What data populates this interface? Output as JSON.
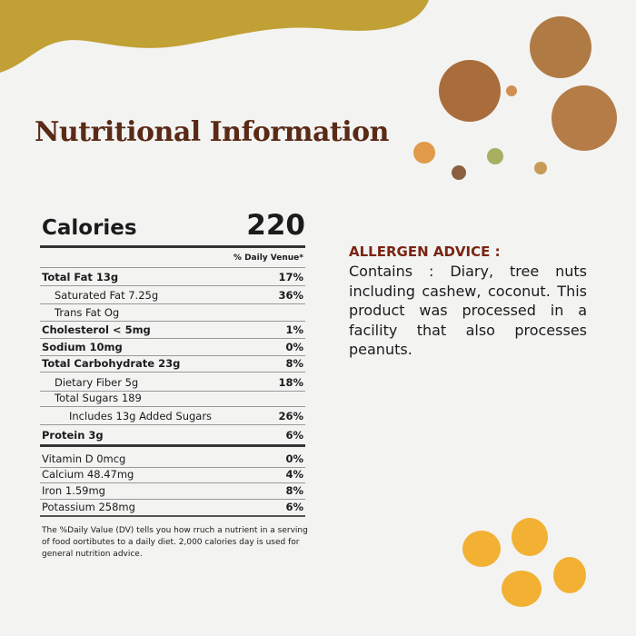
{
  "title": "Nutritional Information",
  "calories": {
    "label": "Calories",
    "value": "220"
  },
  "daily_value_header": "% Daily Venue*",
  "nutrients": [
    {
      "name": "Total Fat 13g",
      "dv": "17%",
      "bold": true,
      "indent": 0
    },
    {
      "name": "Saturated Fat 7.25g",
      "dv": "36%",
      "bold": false,
      "indent": 1
    },
    {
      "name": "Trans Fat Og",
      "dv": "",
      "bold": false,
      "indent": 1
    },
    {
      "name": "Cholesterol < 5mg",
      "dv": "1%",
      "bold": true,
      "indent": 0
    },
    {
      "name": "Sodium 10mg",
      "dv": "0%",
      "bold": true,
      "indent": 0
    },
    {
      "name": "Total Carbohydrate 23g",
      "dv": "8%",
      "bold": true,
      "indent": 0
    },
    {
      "name": "Dietary Fiber 5g",
      "dv": "18%",
      "bold": false,
      "indent": 1
    },
    {
      "name": "Total Sugars 189",
      "dv": "",
      "bold": false,
      "indent": 1
    },
    {
      "name": "Includes 13g Added Sugars",
      "dv": "26%",
      "bold": false,
      "indent": 2
    },
    {
      "name": "Protein 3g",
      "dv": "6%",
      "bold": true,
      "indent": 0
    }
  ],
  "vitamins": [
    {
      "name": "Vitamin D 0mcg",
      "dv": "0%"
    },
    {
      "name": "Calcium 48.47mg",
      "dv": "4%"
    },
    {
      "name": "Iron 1.59mg",
      "dv": "8%"
    },
    {
      "name": "Potassium 258mg",
      "dv": "6%"
    }
  ],
  "footnote": "The %Daily Value (DV) tells you how rruch a nutrient in a serving of food oortibutes to a daily diet. 2,000 calories day is used for general nutrition advice.",
  "allergen": {
    "title": "ALLERGEN ADVICE :",
    "text": "Contains : Diary, tree nuts including cashew, coconut. This product was processed in a facility that also processes peanuts."
  },
  "colors": {
    "banner": "#c1a035",
    "title": "#5a2a16",
    "allergen_title": "#7a2410",
    "dots": "#f2b133"
  }
}
